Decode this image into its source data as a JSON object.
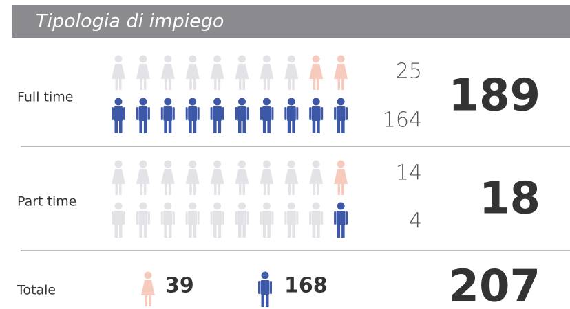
{
  "header": {
    "title": "Tipologia di impiego"
  },
  "rows": [
    {
      "label": "Full time",
      "women": 25,
      "men": 164,
      "total": 189
    },
    {
      "label": "Part time",
      "women": 14,
      "men": 4,
      "total": 18
    }
  ],
  "totals": {
    "label": "Totale",
    "women": 39,
    "men": 168,
    "total": 207
  }
}
